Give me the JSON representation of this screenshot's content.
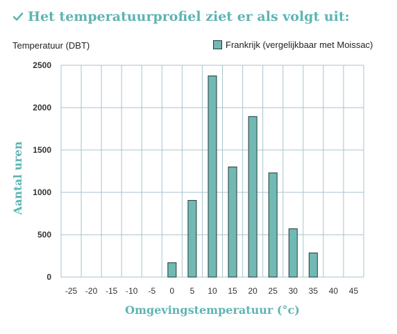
{
  "heading": {
    "check_icon": "check-icon",
    "title": "Het temperatuurprofiel ziet er als volgt uit:"
  },
  "colors": {
    "accent": "#5fb4b2",
    "bar_fill": "#72b9b3",
    "bar_stroke": "#1f3a38",
    "grid": "#a7c3cf"
  },
  "chart_data": {
    "type": "bar",
    "unit_label": "Temperatuur (DBT)",
    "xlabel": "Omgevingstemperatuur (°c)",
    "ylabel": "Aantal uren",
    "categories": [
      "-25",
      "-20",
      "-15",
      "-10",
      "-5",
      "0",
      "5",
      "10",
      "15",
      "20",
      "25",
      "30",
      "35",
      "40",
      "45"
    ],
    "series": [
      {
        "name": "Frankrijk (vergelijkbaar met Moissac)",
        "values": [
          0,
          0,
          0,
          0,
          0,
          170,
          905,
          2375,
          1300,
          1895,
          1230,
          570,
          285,
          0,
          0
        ]
      }
    ],
    "ylim": [
      0,
      2500
    ],
    "yticks": [
      0,
      500,
      1000,
      1500,
      2000,
      2500
    ],
    "grid": true,
    "legend_position": "top-right"
  }
}
